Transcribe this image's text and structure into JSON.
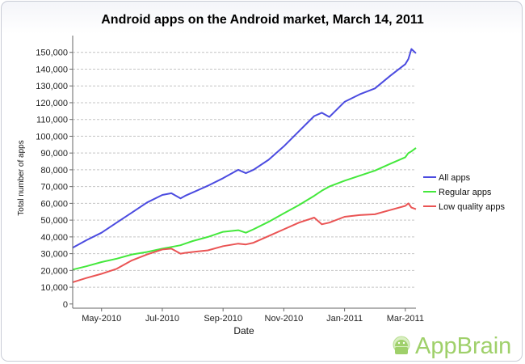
{
  "chart_data": {
    "type": "line",
    "title": "Android apps on the Android market, March 14, 2011",
    "xlabel": "Date",
    "ylabel": "Total number of apps",
    "x_ticks": [
      "May-2010",
      "Jul-2010",
      "Sep-2010",
      "Nov-2010",
      "Jan-2011",
      "Mar-2011"
    ],
    "x_tick_months": [
      2,
      4,
      6,
      8,
      10,
      12
    ],
    "x_range": [
      1.05,
      12.35
    ],
    "y_ticks": [
      0,
      10000,
      20000,
      30000,
      40000,
      50000,
      60000,
      70000,
      80000,
      90000,
      100000,
      110000,
      120000,
      130000,
      140000,
      150000
    ],
    "y_tick_labels": [
      "0",
      "10,000",
      "20,000",
      "30,000",
      "40,000",
      "50,000",
      "60,000",
      "70,000",
      "80,000",
      "90,000",
      "100,000",
      "110,000",
      "120,000",
      "130,000",
      "140,000",
      "150,000"
    ],
    "ylim": [
      -2500,
      160000
    ],
    "grid": true,
    "legend_position": "right",
    "x": [
      1.05,
      1.5,
      2.0,
      2.5,
      3.0,
      3.5,
      4.0,
      4.3,
      4.6,
      4.75,
      5.0,
      5.5,
      6.0,
      6.5,
      6.75,
      7.0,
      7.5,
      8.0,
      8.5,
      9.0,
      9.25,
      9.5,
      10.0,
      10.5,
      11.0,
      11.5,
      12.0,
      12.1,
      12.2,
      12.35
    ],
    "series": [
      {
        "name": "All apps",
        "color": "#4b4be0",
        "values": [
          33500,
          38000,
          42500,
          48500,
          54500,
          60500,
          65000,
          66000,
          63000,
          64500,
          66500,
          70500,
          75000,
          80000,
          78000,
          80000,
          86000,
          94000,
          103000,
          112000,
          114000,
          111500,
          120500,
          125000,
          128500,
          136000,
          143000,
          146000,
          152000,
          149500
        ]
      },
      {
        "name": "Regular apps",
        "color": "#44e83c",
        "values": [
          20500,
          22500,
          25000,
          27000,
          29500,
          31000,
          33000,
          34000,
          35000,
          36000,
          37500,
          40000,
          43000,
          44000,
          42500,
          44500,
          49000,
          54000,
          59000,
          64500,
          67500,
          70000,
          73500,
          76500,
          79500,
          83500,
          87500,
          90000,
          91000,
          93000
        ]
      },
      {
        "name": "Low quality apps",
        "color": "#ea5454",
        "values": [
          13000,
          15500,
          18000,
          21000,
          26000,
          29500,
          32500,
          33000,
          30000,
          30500,
          31000,
          32000,
          34500,
          36000,
          35500,
          36500,
          40500,
          44500,
          48500,
          51500,
          47500,
          48500,
          52000,
          53000,
          53500,
          56000,
          58500,
          60000,
          57500,
          56500
        ]
      }
    ]
  },
  "brand": {
    "text": "AppBrain",
    "icon": "android-icon",
    "color": "#9fd06a"
  }
}
